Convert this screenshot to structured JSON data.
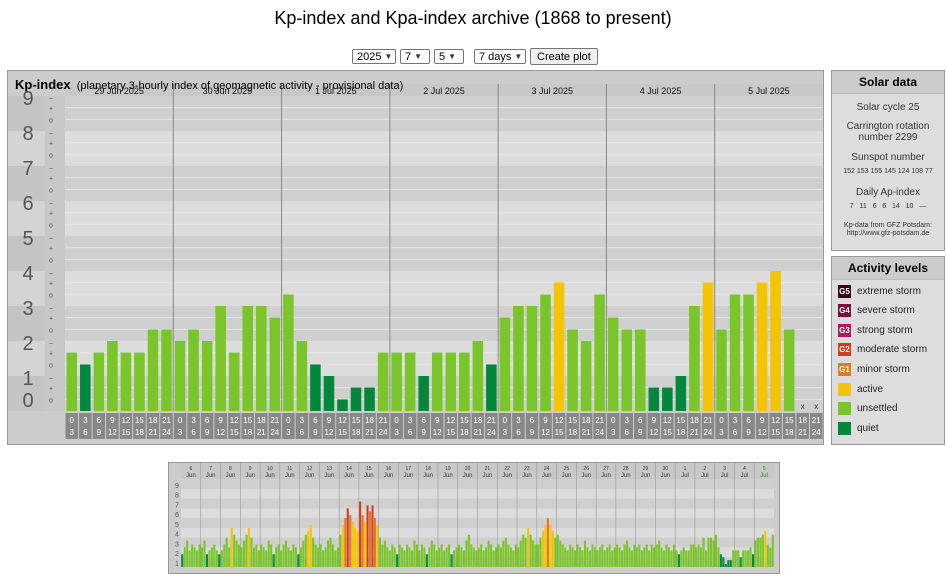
{
  "page": {
    "title": "Kp-index and Kpa-index archive (1868 to present)"
  },
  "controls": {
    "year": "2025",
    "month": "7",
    "day": "5",
    "range": "7 days",
    "create_label": "Create plot"
  },
  "colors": {
    "quiet": "#00873c",
    "unsettled": "#7ac52a",
    "active": "#f5c400",
    "G1": "#e07a1f",
    "G2": "#d63a1f",
    "G3": "#b01a5a",
    "G4": "#7a0a3a",
    "G5": "#3a0015"
  },
  "panel": {
    "title": "Kp-index",
    "subtitle": "(planetary 3-hourly index of geomagnetic activity - provisional data)"
  },
  "solar": {
    "heading": "Solar data",
    "cycle": "Solar cycle 25",
    "carrington": "Carrington rotation number 2299",
    "sunspot_label": "Sunspot number",
    "sunspot_values": "152 153 155 145 124 108 77",
    "ap_label": "Daily Ap-index",
    "ap_values": "7   11   6   6   14   10   —",
    "credit": "Kp-data from GFZ Potsdam: http://www.gfz-potsdam.de"
  },
  "activity": {
    "heading": "Activity levels",
    "items": [
      {
        "badge": "G5",
        "label": "extreme storm",
        "color": "#3a0015"
      },
      {
        "badge": "G4",
        "label": "severe storm",
        "color": "#7a0a3a"
      },
      {
        "badge": "G3",
        "label": "strong storm",
        "color": "#b01a5a"
      },
      {
        "badge": "G2",
        "label": "moderate storm",
        "color": "#d63a1f"
      },
      {
        "badge": "G1",
        "label": "minor storm",
        "color": "#e07a1f"
      },
      {
        "badge": "",
        "label": "active",
        "color": "#f5c400"
      },
      {
        "badge": "",
        "label": "unsettled",
        "color": "#7ac52a"
      },
      {
        "badge": "",
        "label": "quiet",
        "color": "#00873c"
      }
    ]
  },
  "chart_data": [
    {
      "type": "bar",
      "title": "Kp-index",
      "ylim": [
        0,
        9
      ],
      "yticks": [
        "0",
        "1",
        "2",
        "3",
        "4",
        "5",
        "6",
        "7",
        "8",
        "9"
      ],
      "day_labels": [
        "29 Jun 2025",
        "30 Jun 2025",
        "1 Jul 2025",
        "2 Jul 2025",
        "3 Jul 2025",
        "4 Jul 2025",
        "5 Jul 2025"
      ],
      "hour_starts": [
        "0",
        "3",
        "6",
        "9",
        "12",
        "15",
        "18",
        "21"
      ],
      "hour_ends": [
        "3",
        "6",
        "9",
        "12",
        "15",
        "18",
        "21",
        "24"
      ],
      "missing_marker": "x",
      "values": [
        1.67,
        1.33,
        1.67,
        2.0,
        1.67,
        1.67,
        2.33,
        2.33,
        2.0,
        2.33,
        2.0,
        3.0,
        1.67,
        3.0,
        3.0,
        2.67,
        3.33,
        2.0,
        1.33,
        1.0,
        0.33,
        0.67,
        0.67,
        1.67,
        1.67,
        1.67,
        1.0,
        1.67,
        1.67,
        1.67,
        2.0,
        1.33,
        2.67,
        3.0,
        3.0,
        3.33,
        3.67,
        2.33,
        2.0,
        3.33,
        2.67,
        2.33,
        2.33,
        0.67,
        0.67,
        1.0,
        3.0,
        3.67,
        2.33,
        3.33,
        3.33,
        3.67,
        4.0,
        2.33,
        null,
        null
      ]
    },
    {
      "type": "bar",
      "title": "",
      "ylim": [
        0,
        9
      ],
      "yticks": [
        "1",
        "2",
        "3",
        "4",
        "5",
        "6",
        "7",
        "8",
        "9"
      ],
      "day_labels": [
        "6",
        "7",
        "8",
        "9",
        "10",
        "11",
        "12",
        "13",
        "14",
        "15",
        "16",
        "17",
        "18",
        "19",
        "20",
        "21",
        "22",
        "23",
        "24",
        "25",
        "26",
        "27",
        "28",
        "29",
        "30",
        "1",
        "2",
        "3",
        "4",
        "5"
      ],
      "month_labels": [
        "Jun",
        "Jun",
        "Jun",
        "Jun",
        "Jun",
        "Jun",
        "Jun",
        "Jun",
        "Jun",
        "Jun",
        "Jun",
        "Jun",
        "Jun",
        "Jun",
        "Jun",
        "Jun",
        "Jun",
        "Jun",
        "Jun",
        "Jun",
        "Jun",
        "Jun",
        "Jun",
        "Jun",
        "Jun",
        "Jul",
        "Jul",
        "Jul",
        "Jul",
        "Jul"
      ],
      "values": [
        1.3,
        2.0,
        2.7,
        1.7,
        2.3,
        2.0,
        1.7,
        2.3,
        2.0,
        2.7,
        1.3,
        1.7,
        2.0,
        2.3,
        1.7,
        1.3,
        1.7,
        2.3,
        3.0,
        2.0,
        4.0,
        3.3,
        2.7,
        2.3,
        2.0,
        2.7,
        3.3,
        4.0,
        3.0,
        2.0,
        2.3,
        1.7,
        2.3,
        2.0,
        1.7,
        2.7,
        2.3,
        1.3,
        2.0,
        2.3,
        1.7,
        2.3,
        2.7,
        2.0,
        1.7,
        2.3,
        2.0,
        1.3,
        2.0,
        2.7,
        3.3,
        3.7,
        4.3,
        3.0,
        2.3,
        2.0,
        2.3,
        1.7,
        2.0,
        2.7,
        3.0,
        2.3,
        1.7,
        2.0,
        3.3,
        4.3,
        5.0,
        6.0,
        5.3,
        4.7,
        4.0,
        3.7,
        6.7,
        5.3,
        4.7,
        6.3,
        5.7,
        6.3,
        5.0,
        4.3,
        3.0,
        2.3,
        2.7,
        2.0,
        1.7,
        2.3,
        2.0,
        1.3,
        2.3,
        2.0,
        1.7,
        2.3,
        2.0,
        1.7,
        2.7,
        2.3,
        1.7,
        2.3,
        2.0,
        1.3,
        2.0,
        2.7,
        2.3,
        1.7,
        2.0,
        2.3,
        1.7,
        2.0,
        2.3,
        1.3,
        1.7,
        2.0,
        2.3,
        2.0,
        1.7,
        2.7,
        3.3,
        2.3,
        2.0,
        1.7,
        2.0,
        2.3,
        1.7,
        2.0,
        2.7,
        2.3,
        1.7,
        2.0,
        2.3,
        2.0,
        2.7,
        3.0,
        2.3,
        2.0,
        1.7,
        2.3,
        2.0,
        2.7,
        3.3,
        3.0,
        4.0,
        3.3,
        2.7,
        2.3,
        2.3,
        3.0,
        3.7,
        4.3,
        5.0,
        4.3,
        3.7,
        3.0,
        3.3,
        2.7,
        2.3,
        2.0,
        1.7,
        2.3,
        2.0,
        1.7,
        2.3,
        2.0,
        1.7,
        2.7,
        2.0,
        1.7,
        2.3,
        2.0,
        1.7,
        2.0,
        2.3,
        1.7,
        2.0,
        2.3,
        1.7,
        2.0,
        2.3,
        2.0,
        1.7,
        2.3,
        2.7,
        2.0,
        1.7,
        2.3,
        2.0,
        2.3,
        1.7,
        2.0,
        2.3,
        1.7,
        2.3,
        2.0,
        2.3,
        2.7,
        2.0,
        1.7,
        2.3,
        2.0,
        1.7,
        2.3,
        1.7,
        1.3,
        1.7,
        2.0,
        1.7,
        1.7,
        2.3,
        2.3,
        2.0,
        2.3,
        2.0,
        3.0,
        1.7,
        3.0,
        3.0,
        2.7,
        3.3,
        2.0,
        1.3,
        1.0,
        0.3,
        0.7,
        0.7,
        1.7,
        1.7,
        1.7,
        1.0,
        1.7,
        1.7,
        1.7,
        2.0,
        1.3,
        2.7,
        3.0,
        3.0,
        3.3,
        3.7,
        2.3,
        2.0,
        3.3
      ]
    }
  ]
}
